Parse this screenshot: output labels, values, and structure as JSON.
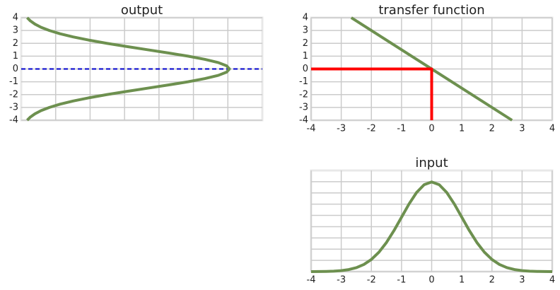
{
  "chart_data": [
    {
      "type": "line",
      "title": "output",
      "grid": true,
      "show_xticklabels": false,
      "show_yticklabels": true,
      "xlim": [
        0,
        0.308
      ],
      "xticks": [
        0.044,
        0.088,
        0.132,
        0.176,
        0.22,
        0.264
      ],
      "ylim": [
        -4,
        4
      ],
      "yticks": [
        -4,
        -3,
        -2,
        -1,
        0,
        1,
        2,
        3,
        4
      ],
      "hline": {
        "value": 0,
        "color": "#0000cc",
        "style": "dashed"
      },
      "series": [
        {
          "color": "#6d904f",
          "x": [
            0.0076,
            0.0117,
            0.0175,
            0.0254,
            0.036,
            0.0495,
            0.0663,
            0.0864,
            0.1093,
            0.1347,
            0.1613,
            0.188,
            0.2131,
            0.2347,
            0.2517,
            0.2623,
            0.266,
            0.2623,
            0.2517,
            0.2347,
            0.2131,
            0.188,
            0.1613,
            0.1347,
            0.1093,
            0.0864,
            0.0663,
            0.0495,
            0.036,
            0.0254,
            0.0175,
            0.0117,
            0.0076
          ],
          "values": [
            -4,
            -3.75,
            -3.5,
            -3.25,
            -3,
            -2.75,
            -2.5,
            -2.25,
            -2,
            -1.75,
            -1.5,
            -1.25,
            -1,
            -0.75,
            -0.5,
            -0.25,
            0,
            0.25,
            0.5,
            0.75,
            1,
            1.25,
            1.5,
            1.75,
            2,
            2.25,
            2.5,
            2.75,
            3,
            3.25,
            3.5,
            3.75,
            4
          ]
        }
      ]
    },
    {
      "type": "line",
      "title": "transfer function",
      "grid": true,
      "show_xticklabels": true,
      "show_yticklabels": true,
      "xlim": [
        -4,
        4
      ],
      "xticks": [
        -4,
        -3,
        -2,
        -1,
        0,
        1,
        2,
        3,
        4
      ],
      "ylim": [
        -4,
        4
      ],
      "yticks": [
        -4,
        -3,
        -2,
        -1,
        0,
        1,
        2,
        3,
        4
      ],
      "series": [
        {
          "color": "#6d904f",
          "x": [
            -2.667,
            2.667
          ],
          "values": [
            4,
            -4
          ]
        },
        {
          "color": "#ff0000",
          "x": [
            -4,
            0,
            0
          ],
          "values": [
            0,
            0,
            -4
          ]
        }
      ]
    },
    {
      "type": "line",
      "title": "input",
      "grid": true,
      "show_xticklabels": true,
      "show_yticklabels": false,
      "xlim": [
        -4,
        4
      ],
      "xticks": [
        -4,
        -3,
        -2,
        -1,
        0,
        1,
        2,
        3,
        4
      ],
      "ylim": [
        0,
        0.45
      ],
      "yticks": [
        0,
        0.05,
        0.1,
        0.15,
        0.2,
        0.25,
        0.3,
        0.35,
        0.4
      ],
      "series": [
        {
          "color": "#6d904f",
          "x": [
            -4,
            -3.75,
            -3.5,
            -3.25,
            -3,
            -2.75,
            -2.5,
            -2.25,
            -2,
            -1.75,
            -1.5,
            -1.25,
            -1,
            -0.75,
            -0.5,
            -0.25,
            0,
            0.25,
            0.5,
            0.75,
            1,
            1.25,
            1.5,
            1.75,
            2,
            2.25,
            2.5,
            2.75,
            3,
            3.25,
            3.5,
            3.75,
            4
          ],
          "values": [
            0.0001,
            0.0004,
            0.0009,
            0.002,
            0.0044,
            0.0091,
            0.0175,
            0.0317,
            0.054,
            0.0863,
            0.1295,
            0.1826,
            0.242,
            0.3011,
            0.352,
            0.3867,
            0.399,
            0.3867,
            0.352,
            0.3011,
            0.242,
            0.1826,
            0.1295,
            0.0863,
            0.054,
            0.0317,
            0.0175,
            0.0091,
            0.0044,
            0.002,
            0.0009,
            0.0004,
            0.0001
          ]
        }
      ]
    }
  ]
}
